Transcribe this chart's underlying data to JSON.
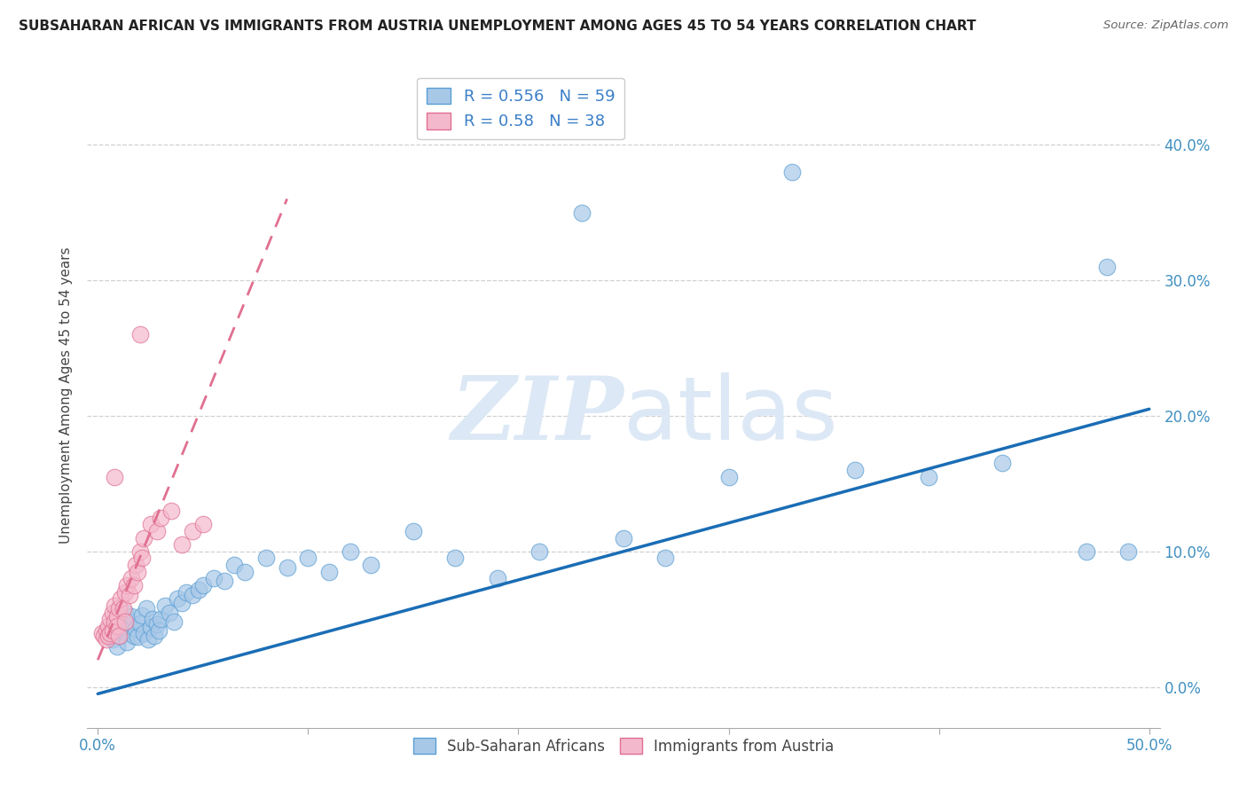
{
  "title": "SUBSAHARAN AFRICAN VS IMMIGRANTS FROM AUSTRIA UNEMPLOYMENT AMONG AGES 45 TO 54 YEARS CORRELATION CHART",
  "source": "Source: ZipAtlas.com",
  "ylabel": "Unemployment Among Ages 45 to 54 years",
  "xlim": [
    -0.005,
    0.505
  ],
  "ylim": [
    -0.03,
    0.46
  ],
  "yticks": [
    0.0,
    0.1,
    0.2,
    0.3,
    0.4
  ],
  "ytick_labels": [
    "0.0%",
    "10.0%",
    "20.0%",
    "30.0%",
    "40.0%"
  ],
  "xtick_show": [
    0.0,
    0.5
  ],
  "xtick_labels_show": [
    "0.0%",
    "50.0%"
  ],
  "blue_fill": "#a8c8e8",
  "blue_edge": "#5a9fd4",
  "pink_fill": "#f4b8cc",
  "pink_edge": "#e07090",
  "blue_line_color": "#1a6db5",
  "pink_line_color": "#e07090",
  "grid_color": "#d0d0d0",
  "watermark_color": "#dce8f5",
  "R_blue": 0.556,
  "N_blue": 59,
  "R_pink": 0.58,
  "N_pink": 38,
  "blue_line_x": [
    0.0,
    0.5
  ],
  "blue_line_y": [
    -0.005,
    0.205
  ],
  "pink_line_x": [
    0.0,
    0.09
  ],
  "pink_line_y": [
    0.02,
    0.36
  ],
  "blue_x": [
    0.005,
    0.007,
    0.008,
    0.009,
    0.01,
    0.011,
    0.012,
    0.013,
    0.014,
    0.015,
    0.016,
    0.017,
    0.018,
    0.019,
    0.02,
    0.021,
    0.022,
    0.023,
    0.024,
    0.025,
    0.026,
    0.027,
    0.028,
    0.029,
    0.03,
    0.032,
    0.034,
    0.036,
    0.038,
    0.04,
    0.042,
    0.045,
    0.048,
    0.05,
    0.055,
    0.06,
    0.065,
    0.07,
    0.08,
    0.09,
    0.1,
    0.11,
    0.12,
    0.13,
    0.15,
    0.17,
    0.19,
    0.21,
    0.23,
    0.25,
    0.27,
    0.3,
    0.33,
    0.36,
    0.395,
    0.43,
    0.47,
    0.48,
    0.49
  ],
  "blue_y": [
    0.04,
    0.035,
    0.045,
    0.03,
    0.05,
    0.038,
    0.042,
    0.055,
    0.033,
    0.048,
    0.052,
    0.038,
    0.043,
    0.037,
    0.047,
    0.053,
    0.04,
    0.058,
    0.035,
    0.044,
    0.05,
    0.038,
    0.046,
    0.042,
    0.05,
    0.06,
    0.055,
    0.048,
    0.065,
    0.062,
    0.07,
    0.068,
    0.072,
    0.075,
    0.08,
    0.078,
    0.09,
    0.085,
    0.095,
    0.088,
    0.095,
    0.085,
    0.1,
    0.09,
    0.115,
    0.095,
    0.08,
    0.1,
    0.35,
    0.11,
    0.095,
    0.155,
    0.38,
    0.16,
    0.155,
    0.165,
    0.1,
    0.31,
    0.1
  ],
  "pink_x": [
    0.002,
    0.003,
    0.004,
    0.004,
    0.005,
    0.005,
    0.006,
    0.006,
    0.007,
    0.007,
    0.008,
    0.008,
    0.009,
    0.009,
    0.01,
    0.01,
    0.011,
    0.012,
    0.013,
    0.013,
    0.014,
    0.015,
    0.016,
    0.017,
    0.018,
    0.019,
    0.02,
    0.021,
    0.022,
    0.025,
    0.028,
    0.03,
    0.035,
    0.04,
    0.045,
    0.05,
    0.02,
    0.008
  ],
  "pink_y": [
    0.04,
    0.038,
    0.042,
    0.035,
    0.045,
    0.038,
    0.05,
    0.04,
    0.055,
    0.042,
    0.06,
    0.048,
    0.052,
    0.045,
    0.058,
    0.038,
    0.065,
    0.058,
    0.07,
    0.048,
    0.075,
    0.068,
    0.08,
    0.075,
    0.09,
    0.085,
    0.1,
    0.095,
    0.11,
    0.12,
    0.115,
    0.125,
    0.13,
    0.105,
    0.115,
    0.12,
    0.26,
    0.155
  ]
}
